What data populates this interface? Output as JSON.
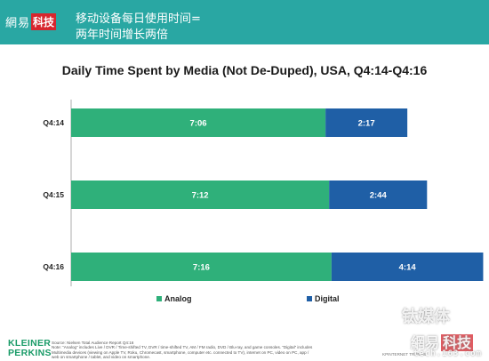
{
  "header": {
    "brand_part1": "網易",
    "brand_part2": "科技",
    "line1": "移动设备每日使用时间=",
    "line2": "两年时间增长两倍",
    "bg_color": "#29a7a3"
  },
  "chart_data": {
    "type": "bar",
    "orientation": "horizontal",
    "stacked": true,
    "title": "Daily Time Spent by Media (Not De-Duped), USA, Q4:14-Q4:16",
    "categories": [
      "Q4:14",
      "Q4:15",
      "Q4:16"
    ],
    "series": [
      {
        "name": "Analog",
        "color": "#2fb07a",
        "values": [
          7.1,
          7.2,
          7.267
        ],
        "labels": [
          "7:06",
          "7:12",
          "7:16"
        ]
      },
      {
        "name": "Digital",
        "color": "#1f5fa6",
        "values": [
          2.283,
          2.733,
          4.233
        ],
        "labels": [
          "2:17",
          "2:44",
          "4:14"
        ]
      }
    ],
    "unit": "hours",
    "xlim": [
      0,
      11.5
    ],
    "legend": "bottom-center",
    "grid": false
  },
  "footer": {
    "logo_line1": "KLEINER",
    "logo_line2": "PERKINS",
    "source_lines": [
      "Source: Nielsen Total Audience Report Q4:16",
      "Note: “Analog” includes Live / DVR / Time-shifted TV, DVR / time-shifted TV, AM / FM radio, DVD / Blu-ray, and game consoles. “Digital” includes",
      "Multimedia devices (viewing on Apple TV, Roku, Chromecast, smartphone, computer etc. connected to TV), internet on PC, video on PC, app /",
      "web on smartphone / tablet, and video on smartphone."
    ],
    "right_text": "KPINTERNET TRENDS"
  },
  "watermark": {
    "line1": "钛媒体",
    "line2a": "網易",
    "line2b": "科技",
    "line3": "tech.163.com"
  }
}
